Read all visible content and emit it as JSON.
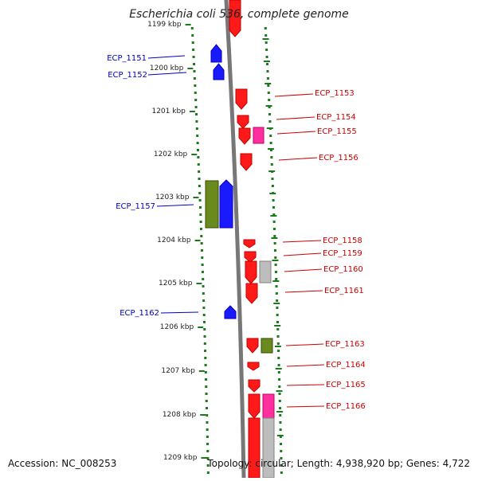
{
  "title": "Escherichia coli 536, complete genome",
  "footer": {
    "accession": "Accession: NC_008253",
    "topology": "Topology: circular; Length: 4,938,920 bp; Genes: 4,722"
  },
  "colors": {
    "forward": "#1a1aff",
    "reverse": "#ff1a1a",
    "pink": "#ff2fa0",
    "olive": "#6b8a1e",
    "gray": "#bdbdbd",
    "tick": "#1b7a1b",
    "backbone": "#777777",
    "label_forward": "#0000c0",
    "label_reverse": "#cc0000"
  },
  "scale": {
    "ticks": [
      "1199 kbp",
      "1200 kbp",
      "1201 kbp",
      "1202 kbp",
      "1203 kbp",
      "1204 kbp",
      "1205 kbp",
      "1206 kbp",
      "1207 kbp",
      "1208 kbp",
      "1209 kbp"
    ]
  },
  "labels": [
    {
      "text": "ECP_1151",
      "strand": "forward"
    },
    {
      "text": "ECP_1152",
      "strand": "forward"
    },
    {
      "text": "ECP_1157",
      "strand": "forward"
    },
    {
      "text": "ECP_1162",
      "strand": "forward"
    },
    {
      "text": "ECP_1153",
      "strand": "reverse"
    },
    {
      "text": "ECP_1154",
      "strand": "reverse"
    },
    {
      "text": "ECP_1155",
      "strand": "reverse"
    },
    {
      "text": "ECP_1156",
      "strand": "reverse"
    },
    {
      "text": "ECP_1158",
      "strand": "reverse"
    },
    {
      "text": "ECP_1159",
      "strand": "reverse"
    },
    {
      "text": "ECP_1160",
      "strand": "reverse"
    },
    {
      "text": "ECP_1161",
      "strand": "reverse"
    },
    {
      "text": "ECP_1163",
      "strand": "reverse"
    },
    {
      "text": "ECP_1164",
      "strand": "reverse"
    },
    {
      "text": "ECP_1165",
      "strand": "reverse"
    },
    {
      "text": "ECP_1166",
      "strand": "reverse"
    }
  ]
}
